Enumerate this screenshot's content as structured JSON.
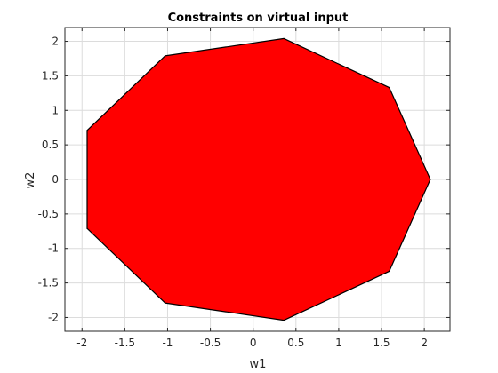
{
  "chart_data": {
    "type": "area",
    "title": "Constraints on virtual input",
    "xlabel": "w1",
    "ylabel": "w2",
    "xlim": [
      -2.2,
      2.3
    ],
    "ylim": [
      -2.2,
      2.2
    ],
    "x_ticks": [
      -2,
      -1.5,
      -1,
      -0.5,
      0,
      0.5,
      1,
      1.5,
      2
    ],
    "x_tick_labels": [
      "-2",
      "-1.5",
      "-1",
      "-0.5",
      "0",
      "0.5",
      "1",
      "1.5",
      "2"
    ],
    "y_ticks": [
      2,
      1.5,
      1,
      0.5,
      0,
      -0.5,
      -1,
      -1.5,
      -2
    ],
    "y_tick_labels": [
      "2",
      "1.5",
      "1",
      "0.5",
      "0",
      "-0.5",
      "-1",
      "-1.5",
      "-2"
    ],
    "grid": true,
    "box": true,
    "polygon": {
      "fill_color": "#ff0000",
      "edge_color": "#000000",
      "vertices": [
        {
          "x": 2.07,
          "y": 0.0
        },
        {
          "x": 1.59,
          "y": 1.33
        },
        {
          "x": 0.36,
          "y": 2.04
        },
        {
          "x": -1.03,
          "y": 1.79
        },
        {
          "x": -1.94,
          "y": 0.71
        },
        {
          "x": -1.94,
          "y": -0.71
        },
        {
          "x": -1.03,
          "y": -1.79
        },
        {
          "x": 0.36,
          "y": -2.04
        },
        {
          "x": 1.59,
          "y": -1.33
        }
      ]
    },
    "colors": {
      "axis": "#262626",
      "grid": "#dcdcdc",
      "background": "#ffffff"
    }
  }
}
